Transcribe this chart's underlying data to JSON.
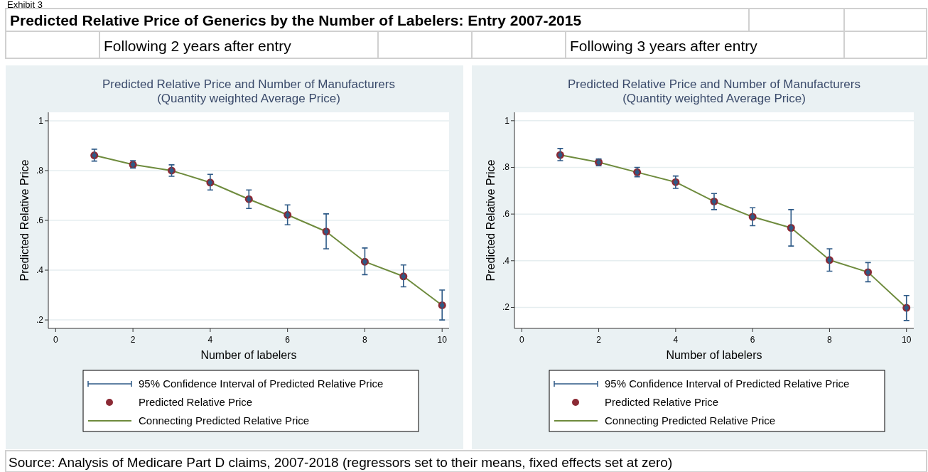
{
  "chart_data": [
    {
      "type": "scatter",
      "title": "Predicted Relative Price and Number of Manufacturers",
      "subtitle": "(Quantity weighted Average Price)",
      "xlabel": "Number of labelers",
      "ylabel": "Predicted Relative Price",
      "annotations": [
        "Exhibit 3",
        "Predicted Relative Price of Generics by the Number of Labelers: Entry 2007-2015",
        "Following 2 years after entry",
        "Source: Analysis of Medicare Part D claims, 2007-2018 (regressors set to their means, fixed effects set at zero)"
      ],
      "x": [
        1,
        2,
        3,
        4,
        5,
        6,
        7,
        8,
        9,
        10
      ],
      "series": [
        {
          "name": "95% Confidence Interval of Predicted Relative Price",
          "color": "#2e5a87",
          "values": [
            0.861,
            0.824,
            0.8,
            0.752,
            0.685,
            0.622,
            0.555,
            0.434,
            0.375,
            0.259
          ],
          "errors": [
            [
              0.838,
              0.886
            ],
            [
              0.81,
              0.84
            ],
            [
              0.777,
              0.823
            ],
            [
              0.722,
              0.785
            ],
            [
              0.648,
              0.722
            ],
            [
              0.582,
              0.662
            ],
            [
              0.486,
              0.626
            ],
            [
              0.382,
              0.489
            ],
            [
              0.333,
              0.421
            ],
            [
              0.2,
              0.32
            ]
          ]
        },
        {
          "name": "Predicted Relative Price",
          "marker": "circle",
          "color": "#8b2a35",
          "values": [
            0.861,
            0.824,
            0.8,
            0.752,
            0.685,
            0.622,
            0.555,
            0.434,
            0.375,
            0.259
          ]
        },
        {
          "name": "Connecting Predicted Relative Price",
          "type": "line",
          "marker": "none",
          "color": "#6e8b3d",
          "values": [
            0.861,
            0.824,
            0.8,
            0.752,
            0.685,
            0.622,
            0.555,
            0.434,
            0.375,
            0.259
          ]
        }
      ],
      "xlim": [
        -0.19,
        10.18
      ],
      "xticks": [
        0,
        2,
        4,
        6,
        8,
        10
      ],
      "ylim": [
        0.166,
        1.034
      ],
      "yticks": [
        {
          "value": 0.2,
          "label": ".2"
        },
        {
          "value": 0.4,
          "label": ".4"
        },
        {
          "value": 0.6,
          "label": ".6"
        },
        {
          "value": 0.8,
          "label": ".8"
        },
        1
      ],
      "grid": "y",
      "legend": "bottom"
    },
    {
      "type": "scatter",
      "title": "Predicted Relative Price and Number of Manufacturers",
      "subtitle": "(Quantity weighted Average Price)",
      "xlabel": "Number of labelers",
      "ylabel": "Predicted Relative Price",
      "annotations": [
        "Following 3 years after entry"
      ],
      "x": [
        1,
        2,
        3,
        4,
        5,
        6,
        7,
        8,
        9,
        10
      ],
      "series": [
        {
          "name": "95% Confidence Interval of Predicted Relative Price",
          "color": "#2e5a87",
          "values": [
            0.853,
            0.822,
            0.779,
            0.737,
            0.654,
            0.588,
            0.541,
            0.403,
            0.351,
            0.198
          ],
          "errors": [
            [
              0.829,
              0.881
            ],
            [
              0.807,
              0.836
            ],
            [
              0.76,
              0.8
            ],
            [
              0.71,
              0.763
            ],
            [
              0.619,
              0.688
            ],
            [
              0.55,
              0.627
            ],
            [
              0.463,
              0.619
            ],
            [
              0.355,
              0.451
            ],
            [
              0.31,
              0.392
            ],
            [
              0.144,
              0.251
            ]
          ]
        },
        {
          "name": "Predicted Relative Price",
          "marker": "circle",
          "color": "#8b2a35",
          "values": [
            0.853,
            0.822,
            0.779,
            0.737,
            0.654,
            0.588,
            0.541,
            0.403,
            0.351,
            0.198
          ]
        },
        {
          "name": "Connecting Predicted Relative Price",
          "type": "line",
          "marker": "none",
          "color": "#6e8b3d",
          "values": [
            0.853,
            0.822,
            0.779,
            0.737,
            0.654,
            0.588,
            0.541,
            0.403,
            0.351,
            0.198
          ]
        }
      ],
      "xlim": [
        -0.19,
        10.19
      ],
      "xticks": [
        0,
        2,
        4,
        6,
        8,
        10
      ],
      "ylim": [
        0.11,
        1.036
      ],
      "yticks": [
        {
          "value": 0.2,
          "label": ".2"
        },
        {
          "value": 0.4,
          "label": ".4"
        },
        {
          "value": 0.6,
          "label": ".6"
        },
        {
          "value": 0.8,
          "label": ".8"
        },
        1
      ],
      "grid": "y",
      "legend": "bottom"
    }
  ]
}
